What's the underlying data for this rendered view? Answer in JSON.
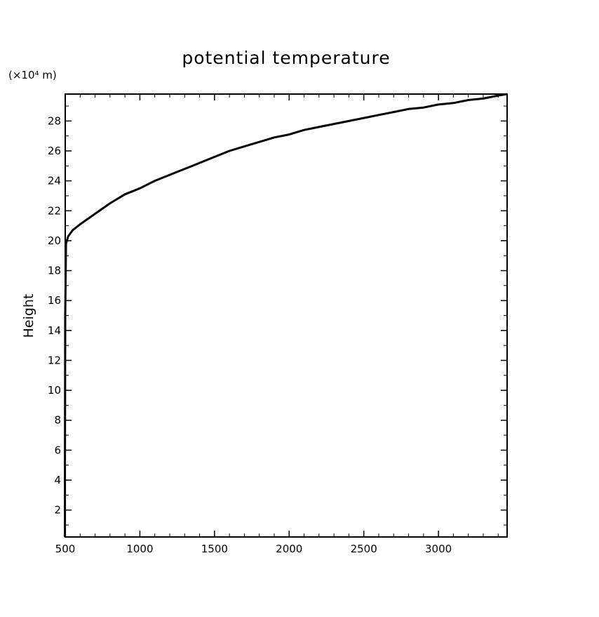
{
  "chart_data": {
    "type": "line",
    "title": "potential temperature",
    "ylabel": "Height",
    "yunit": "(×10⁴ m)",
    "xlabel": "",
    "xlim": [
      500,
      3460
    ],
    "ylim": [
      0.2,
      29.8
    ],
    "xticks": [
      500,
      1000,
      1500,
      2000,
      2500,
      3000
    ],
    "yticks": [
      2,
      4,
      6,
      8,
      10,
      12,
      14,
      16,
      18,
      20,
      22,
      24,
      26,
      28
    ],
    "grid": false,
    "series": [
      {
        "name": "",
        "color": "#000000",
        "x": [
          498,
          498,
          499,
          500,
          505,
          520,
          550,
          600,
          700,
          800,
          900,
          1000,
          1100,
          1200,
          1300,
          1400,
          1500,
          1600,
          1700,
          1800,
          1900,
          2000,
          2100,
          2200,
          2300,
          2400,
          2500,
          2600,
          2700,
          2800,
          2900,
          3000,
          3100,
          3200,
          3300,
          3400,
          3460
        ],
        "y": [
          0.2,
          5.0,
          10.0,
          15.0,
          19.8,
          20.3,
          20.7,
          21.1,
          21.8,
          22.5,
          23.1,
          23.5,
          24.0,
          24.4,
          24.8,
          25.2,
          25.6,
          26.0,
          26.3,
          26.6,
          26.9,
          27.1,
          27.4,
          27.6,
          27.8,
          28.0,
          28.2,
          28.4,
          28.6,
          28.8,
          28.9,
          29.1,
          29.2,
          29.4,
          29.5,
          29.7,
          29.8
        ]
      }
    ]
  }
}
